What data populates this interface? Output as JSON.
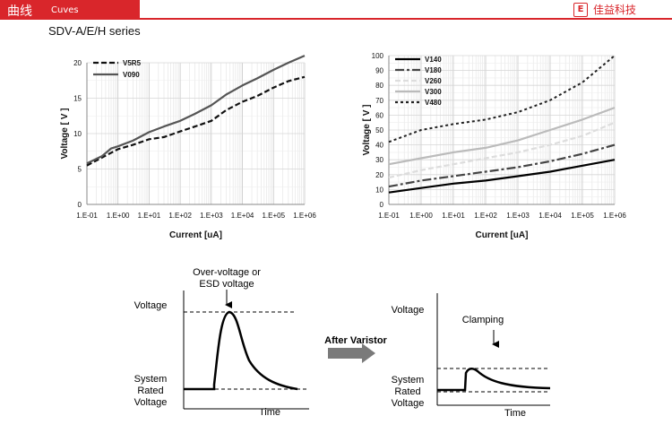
{
  "header": {
    "title": "曲线",
    "subtitle": "Cuves",
    "logo_mark": "E",
    "logo_text": "佳益科技"
  },
  "series_title": "SDV-A/E/H series",
  "chart_data": [
    {
      "type": "line",
      "xscale": "log",
      "xlabel": "Current [uA]",
      "ylabel": "Voltage [ V ]",
      "xlim": [
        0.1,
        1000000
      ],
      "ylim": [
        0,
        20
      ],
      "xticks": [
        "1.E-01",
        "1.E+00",
        "1.E+01",
        "1.E+02",
        "1.E+03",
        "1.E+04",
        "1.E+05",
        "1.E+06"
      ],
      "yticks": [
        "0",
        "5",
        "10",
        "15",
        "20"
      ],
      "legend": "top-left",
      "series": [
        {
          "name": "V5R5",
          "style": "dashed",
          "color": "#111111",
          "x": [
            0.1,
            0.3,
            1,
            3,
            10,
            30,
            100,
            300,
            1000,
            3000,
            10000,
            30000,
            100000,
            300000,
            1000000
          ],
          "y": [
            5.5,
            6.6,
            7.8,
            8.4,
            9.2,
            9.5,
            10.3,
            11,
            11.8,
            13.3,
            14.5,
            15.3,
            16.5,
            17.4,
            18
          ]
        },
        {
          "name": "V090",
          "style": "solid",
          "color": "#555555",
          "x": [
            0.1,
            0.3,
            0.6,
            1,
            3,
            10,
            30,
            100,
            300,
            1000,
            3000,
            10000,
            30000,
            100000,
            300000,
            1000000
          ],
          "y": [
            5.8,
            6.8,
            7.9,
            8.2,
            9,
            10.2,
            11,
            11.8,
            12.8,
            14,
            15.5,
            16.8,
            17.8,
            19,
            20,
            21
          ]
        }
      ]
    },
    {
      "type": "line",
      "xscale": "log",
      "xlabel": "Current [uA]",
      "ylabel": "Voltage [ V ]",
      "xlim": [
        0.1,
        1000000
      ],
      "ylim": [
        0,
        100
      ],
      "xticks": [
        "1.E-01",
        "1.E+00",
        "1.E+01",
        "1.E+02",
        "1.E+03",
        "1.E+04",
        "1.E+05",
        "1.E+06"
      ],
      "yticks": [
        "0",
        "10",
        "20",
        "30",
        "40",
        "50",
        "60",
        "70",
        "80",
        "90",
        "100"
      ],
      "legend": "top-left",
      "series": [
        {
          "name": "V140",
          "style": "solid",
          "color": "#000000",
          "x": [
            0.1,
            1,
            10,
            100,
            1000,
            10000,
            100000,
            1000000
          ],
          "y": [
            8,
            11,
            14,
            16,
            19,
            22,
            26,
            30
          ]
        },
        {
          "name": "V180",
          "style": "dashdot",
          "color": "#444444",
          "x": [
            0.1,
            1,
            10,
            100,
            1000,
            10000,
            100000,
            1000000
          ],
          "y": [
            12,
            16,
            19,
            22,
            25,
            29,
            34,
            40
          ]
        },
        {
          "name": "V260",
          "style": "dashed",
          "color": "#dddddd",
          "x": [
            0.1,
            1,
            10,
            100,
            1000,
            10000,
            100000,
            1000000
          ],
          "y": [
            18,
            23,
            27,
            31,
            35,
            40,
            46,
            55
          ]
        },
        {
          "name": "V300",
          "style": "solid",
          "color": "#bbbbbb",
          "x": [
            0.1,
            1,
            10,
            100,
            1000,
            10000,
            100000,
            1000000
          ],
          "y": [
            27,
            31,
            35,
            38,
            43,
            50,
            57,
            65
          ]
        },
        {
          "name": "V480",
          "style": "dotted",
          "color": "#222222",
          "x": [
            0.1,
            1,
            10,
            100,
            1000,
            10000,
            100000,
            1000000
          ],
          "y": [
            42,
            50,
            54,
            57,
            62,
            70,
            82,
            100
          ]
        }
      ]
    }
  ],
  "diagram": {
    "left": {
      "ylabel": "Voltage",
      "xlabel": "Time",
      "peak_label_1": "Over-voltage or",
      "peak_label_2": "ESD voltage",
      "base_1": "System",
      "base_2": "Rated",
      "base_3": "Voltage"
    },
    "arrow_label": "After Varistor",
    "right": {
      "ylabel": "Voltage",
      "xlabel": "Time",
      "clamp_label": "Clamping",
      "base_1": "System",
      "base_2": "Rated",
      "base_3": "Voltage"
    }
  }
}
